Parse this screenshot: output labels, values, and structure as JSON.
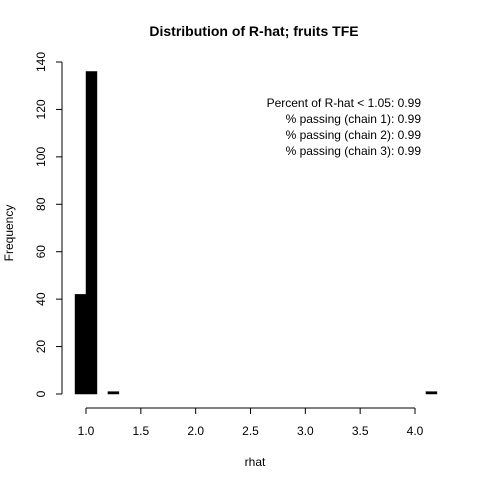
{
  "chart_data": {
    "type": "bar",
    "title": "Distribution of R-hat; fruits TFE",
    "xlabel": "rhat",
    "ylabel": "Frequency",
    "xlim": [
      0.9,
      4.1
    ],
    "ylim": [
      0,
      140
    ],
    "x_ticks": [
      1.0,
      1.5,
      2.0,
      2.5,
      3.0,
      3.5,
      4.0
    ],
    "x_tick_labels": [
      "1.0",
      "1.5",
      "2.0",
      "2.5",
      "3.0",
      "3.5",
      "4.0"
    ],
    "y_ticks": [
      0,
      20,
      40,
      60,
      80,
      100,
      120,
      140
    ],
    "y_tick_labels": [
      "0",
      "20",
      "40",
      "60",
      "80",
      "100",
      "120",
      "140"
    ],
    "bins": [
      {
        "x0": 0.9,
        "x1": 1.0,
        "count": 42
      },
      {
        "x0": 1.0,
        "x1": 1.1,
        "count": 136
      },
      {
        "x0": 1.2,
        "x1": 1.3,
        "count": 1
      },
      {
        "x0": 4.1,
        "x1": 4.2,
        "count": 1
      }
    ],
    "annotations": [
      "Percent of R-hat < 1.05: 0.99",
      "% passing (chain 1): 0.99",
      "% passing (chain 2): 0.99",
      "% passing (chain 3): 0.99"
    ],
    "grid": false,
    "bar_color": "#000000"
  }
}
